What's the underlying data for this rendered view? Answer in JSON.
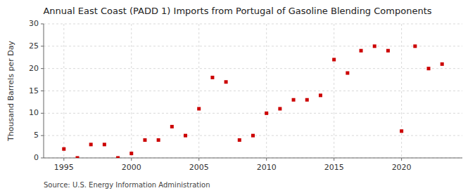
{
  "chart_data": {
    "type": "scatter",
    "title": "Annual East Coast (PADD 1) Imports from Portugal of Gasoline Blending Components",
    "ylabel": "Thousand Barrels per Day",
    "annotations": [
      "Source: U.S. Energy Information Administration"
    ],
    "x": [
      1995,
      1996,
      1997,
      1998,
      1999,
      2000,
      2001,
      2002,
      2003,
      2004,
      2005,
      2006,
      2007,
      2008,
      2009,
      2010,
      2011,
      2012,
      2013,
      2014,
      2015,
      2016,
      2017,
      2018,
      2019,
      2020,
      2021,
      2022,
      2023
    ],
    "values": [
      2,
      0,
      3,
      3,
      0,
      1,
      4,
      4,
      7,
      5,
      11,
      18,
      17,
      4,
      5,
      10,
      11,
      13,
      13,
      14,
      22,
      19,
      24,
      25,
      24,
      6,
      25,
      20,
      21
    ],
    "color": "#cc0000",
    "marker": "square",
    "xlim": [
      1993.5,
      2024.5
    ],
    "ylim": [
      0,
      30
    ],
    "xticks": [
      1995,
      2000,
      2005,
      2010,
      2015,
      2020
    ],
    "yticks": [
      0,
      5,
      10,
      15,
      20,
      25,
      30
    ],
    "grid": true
  }
}
